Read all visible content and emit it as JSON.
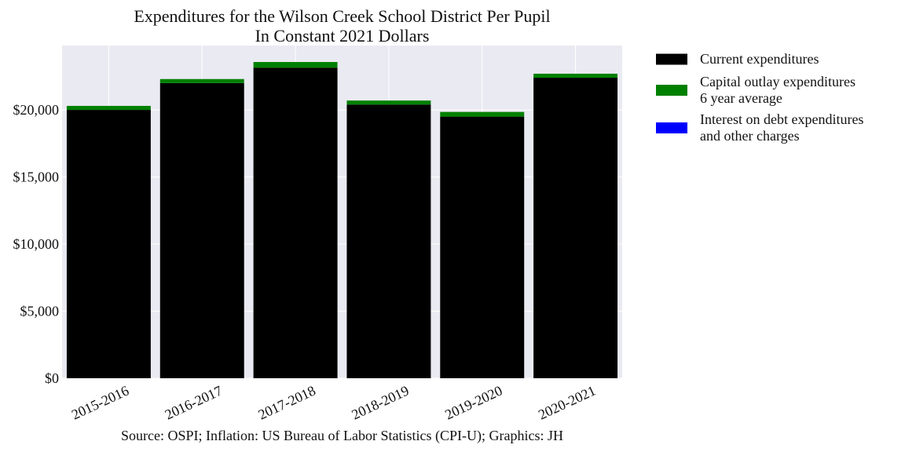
{
  "chart_data": {
    "type": "bar",
    "stacked": true,
    "title": [
      "Expenditures for the Wilson Creek School District Per Pupil",
      "In Constant 2021 Dollars"
    ],
    "xlabel": "",
    "ylabel": "",
    "categories": [
      "2015-2016",
      "2016-2017",
      "2017-2018",
      "2018-2019",
      "2019-2020",
      "2020-2021"
    ],
    "series": [
      {
        "name": "Current expenditures",
        "color": "#000000",
        "values": [
          20000,
          22000,
          23150,
          20400,
          19500,
          22400
        ]
      },
      {
        "name": "Capital outlay expenditures 6 year average",
        "color": "#008000",
        "values": [
          300,
          300,
          420,
          300,
          350,
          300
        ]
      },
      {
        "name": "Interest on debt expenditures and other charges",
        "color": "#0000ff",
        "values": [
          0,
          0,
          0,
          0,
          0,
          0
        ]
      }
    ],
    "ylim": [
      0,
      24800
    ],
    "yticks": [
      0,
      5000,
      10000,
      15000,
      20000
    ],
    "ytick_labels": [
      "$0",
      "$5,000",
      "$10,000",
      "$15,000",
      "$20,000"
    ],
    "grid": true,
    "legend": {
      "placement": "outside-right",
      "entries": [
        {
          "lines": [
            "Current expenditures"
          ],
          "color": "#000000"
        },
        {
          "lines": [
            "Capital outlay expenditures",
            "6 year average"
          ],
          "color": "#008000"
        },
        {
          "lines": [
            "Interest on debt expenditures",
            "and other charges"
          ],
          "color": "#0000ff"
        }
      ]
    },
    "source": "Source: OSPI; Inflation: US Bureau of Labor Statistics (CPI-U); Graphics: JH"
  },
  "colors": {
    "plot_background": "#eaeaf2",
    "grid": "#ffffff"
  }
}
